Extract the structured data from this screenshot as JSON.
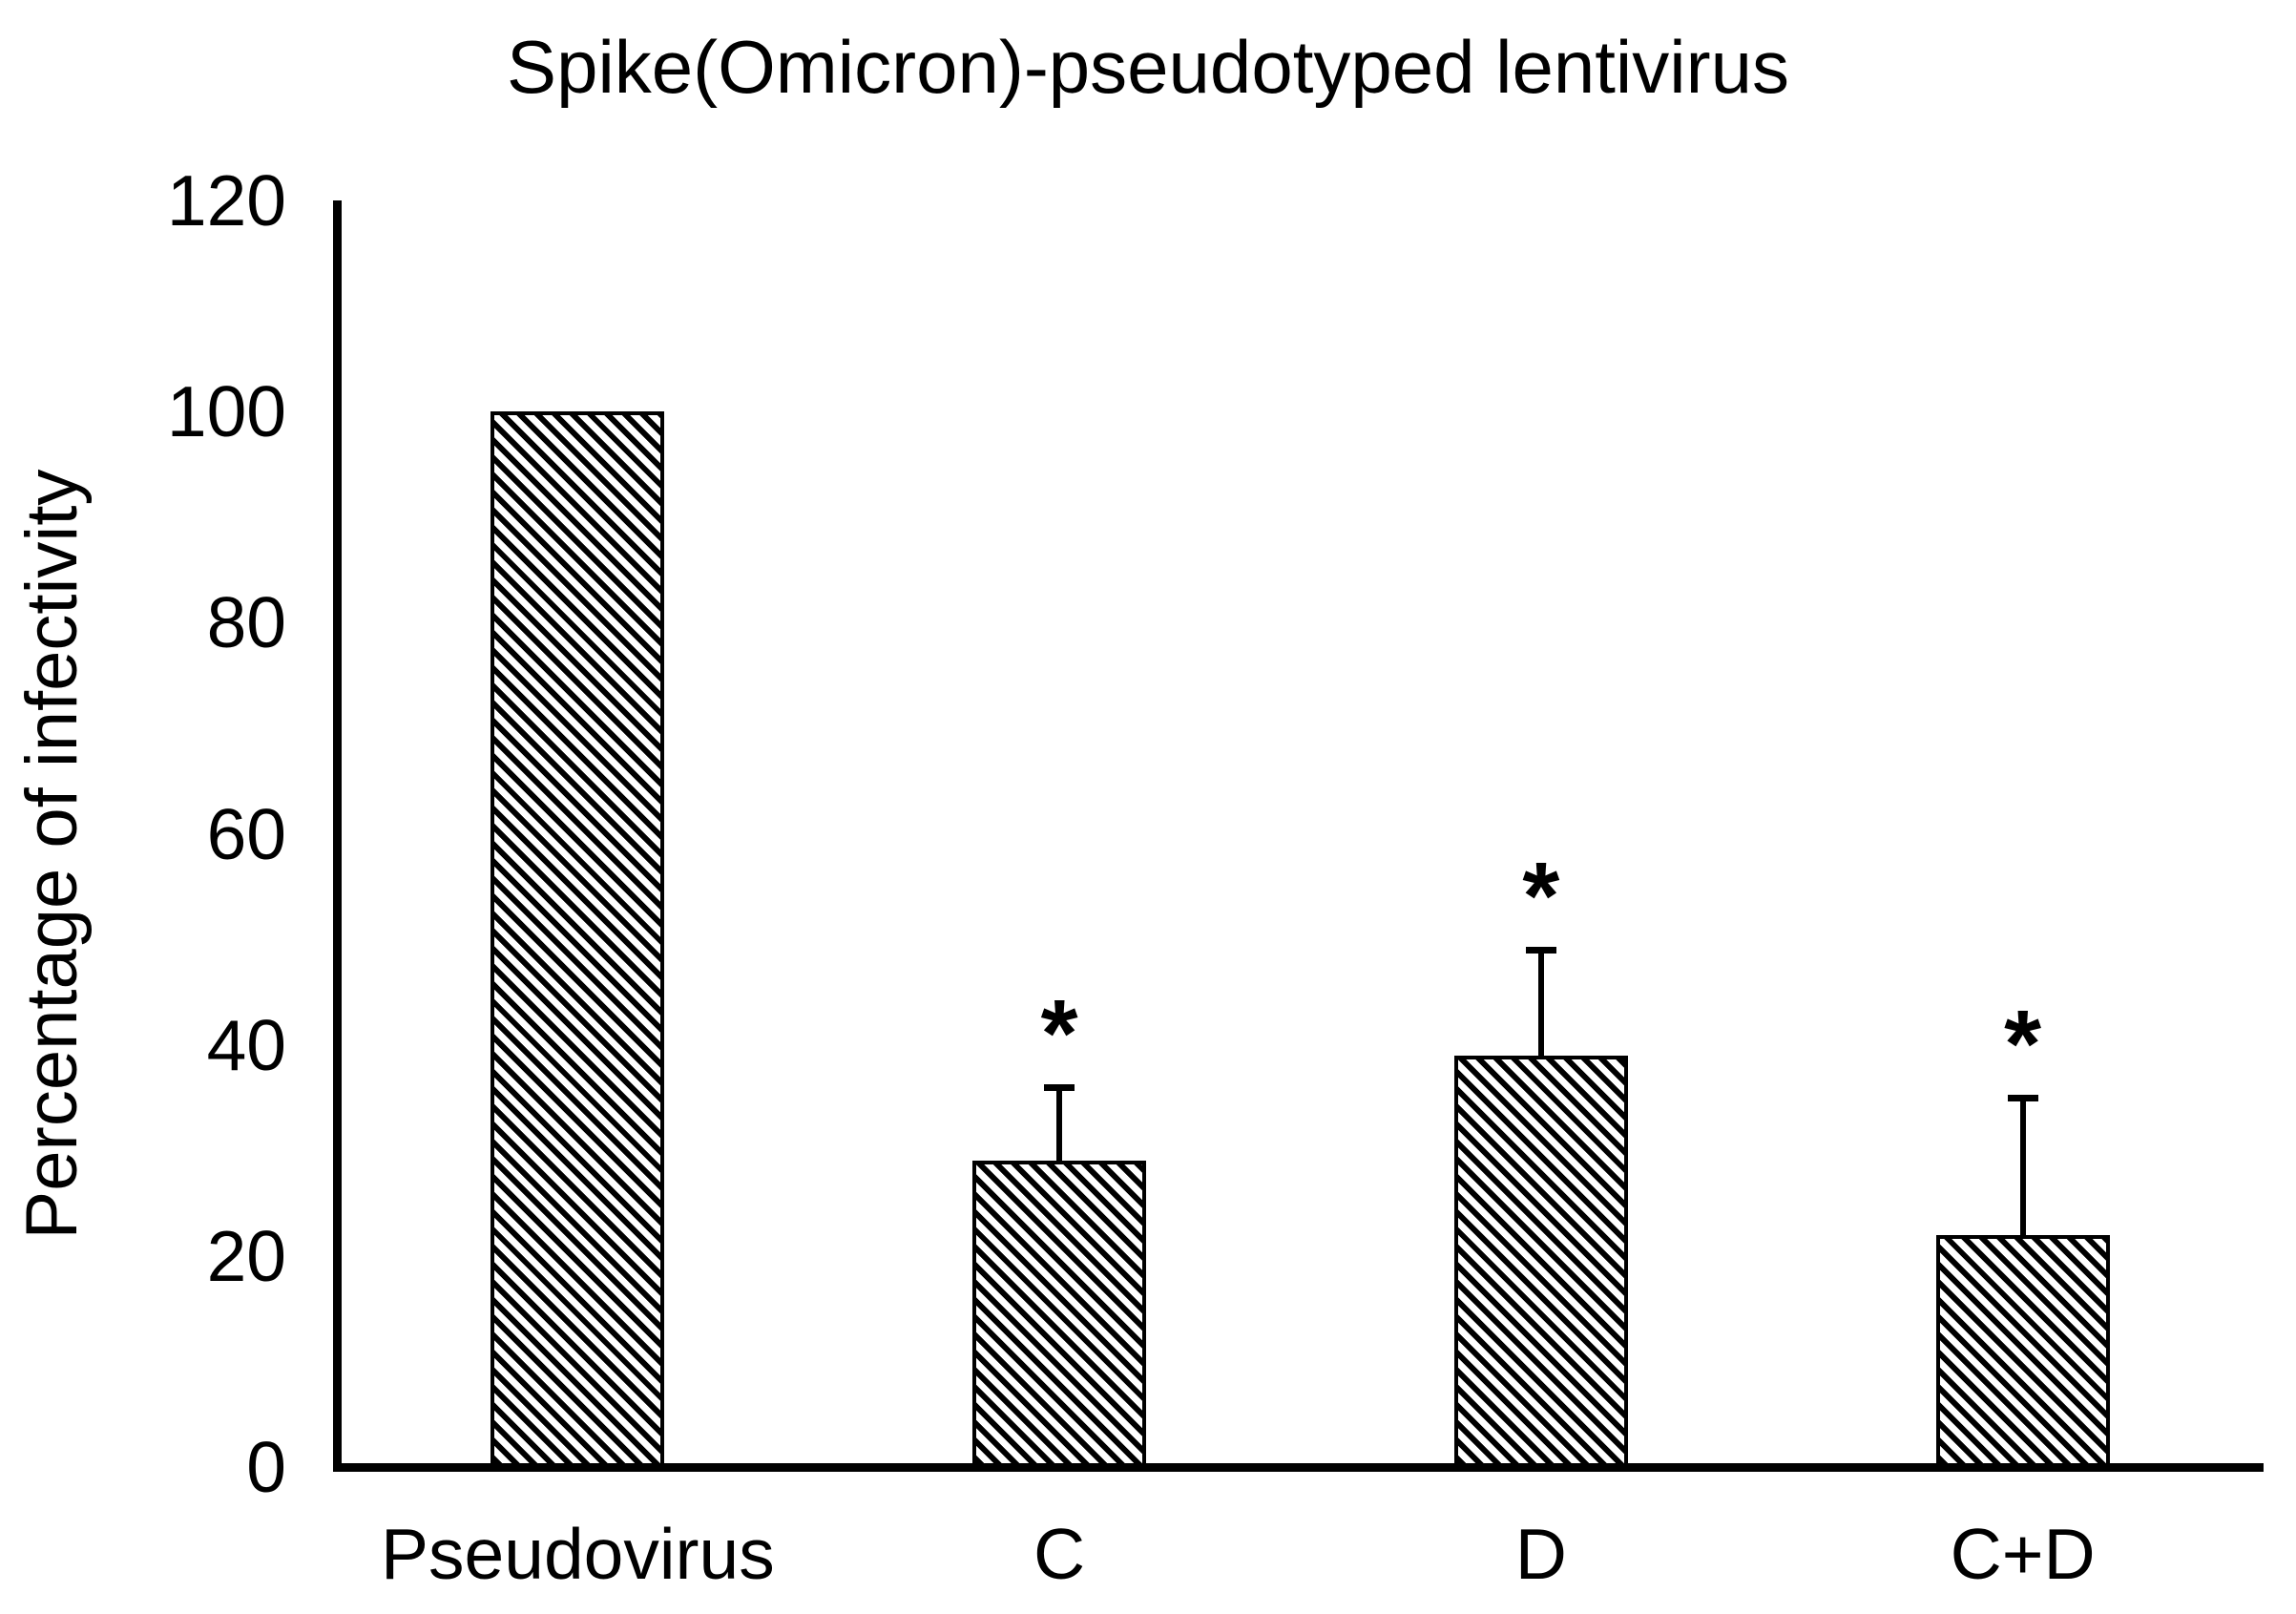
{
  "chart_data": {
    "type": "bar",
    "title": "Spike(Omicron)-pseudotyped lentivirus",
    "ylabel": "Percentage of infectivity",
    "xlabel": "",
    "categories": [
      "Pseudovirus",
      "C",
      "D",
      "C+D"
    ],
    "values": [
      100,
      29,
      39,
      22
    ],
    "errors_plus": [
      0,
      7,
      10,
      13
    ],
    "significance": [
      false,
      true,
      true,
      true
    ],
    "significance_marker": "*",
    "ylim": [
      0,
      120
    ],
    "yticks": [
      0,
      20,
      40,
      60,
      80,
      100,
      120
    ],
    "grid": false,
    "legend": null,
    "bar_style": {
      "fill": "#ffffff",
      "hatch": "diagonal-down",
      "edge_color": "#000000"
    },
    "axis_color": "#000000",
    "text_color": "#000000",
    "background_color": "#ffffff"
  }
}
